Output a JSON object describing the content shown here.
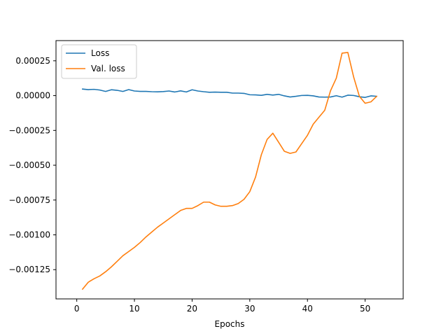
{
  "chart_data": {
    "type": "line",
    "title": "",
    "xlabel": "Epochs",
    "ylabel": "",
    "xlim": [
      -3.6,
      56.6
    ],
    "ylim": [
      -0.00146,
      0.000395
    ],
    "xticks": [
      0,
      10,
      20,
      30,
      40,
      50
    ],
    "xtick_labels": [
      "0",
      "10",
      "20",
      "30",
      "40",
      "50"
    ],
    "yticks": [
      -0.00125,
      -0.001,
      -0.00075,
      -0.0005,
      -0.00025,
      0.0,
      0.00025
    ],
    "ytick_labels": [
      "−0.00125",
      "−0.00100",
      "−0.00075",
      "−0.00050",
      "−0.00025",
      "0.00000",
      "0.00025"
    ],
    "grid": false,
    "legend_position": "upper-left",
    "x": [
      1,
      2,
      3,
      4,
      5,
      6,
      7,
      8,
      9,
      10,
      11,
      12,
      13,
      14,
      15,
      16,
      17,
      18,
      19,
      20,
      21,
      22,
      23,
      24,
      25,
      26,
      27,
      28,
      29,
      30,
      31,
      32,
      33,
      34,
      35,
      36,
      37,
      38,
      39,
      40,
      41,
      42,
      43,
      44,
      45,
      46,
      47,
      48,
      49,
      50,
      51,
      52
    ],
    "series": [
      {
        "name": "Loss",
        "color": "#1f77b4",
        "values": [
          4.7e-05,
          4.3e-05,
          4.5e-05,
          4e-05,
          3e-05,
          4.2e-05,
          3.8e-05,
          3e-05,
          4.3e-05,
          3.3e-05,
          3e-05,
          3e-05,
          2.8e-05,
          2.7e-05,
          2.9e-05,
          3.3e-05,
          2.6e-05,
          3.4e-05,
          2.6e-05,
          4.2e-05,
          3.3e-05,
          2.8e-05,
          2.4e-05,
          2.5e-05,
          2.4e-05,
          2.4e-05,
          1.8e-05,
          1.8e-05,
          1.6e-05,
          6e-06,
          5e-06,
          2e-06,
          9e-06,
          4e-06,
          9e-06,
          -2e-06,
          -1e-05,
          -5e-06,
          1e-06,
          2e-06,
          -2e-06,
          -1e-05,
          -1.1e-05,
          -1e-05,
          -1e-06,
          -1.1e-05,
          3e-06,
          1e-06,
          -8e-06,
          -1.3e-05,
          -2e-06,
          -5e-06
        ]
      },
      {
        "name": "Val. loss",
        "color": "#ff7f0e",
        "values": [
          -0.00139,
          -0.00134,
          -0.001315,
          -0.001295,
          -0.001265,
          -0.00123,
          -0.00119,
          -0.00115,
          -0.00112,
          -0.00109,
          -0.001055,
          -0.001015,
          -0.00098,
          -0.000945,
          -0.000915,
          -0.000885,
          -0.000855,
          -0.000825,
          -0.00081,
          -0.00081,
          -0.00079,
          -0.000765,
          -0.000765,
          -0.000785,
          -0.000795,
          -0.000795,
          -0.00079,
          -0.000775,
          -0.000745,
          -0.00069,
          -0.000585,
          -0.000425,
          -0.000315,
          -0.00027,
          -0.000335,
          -0.0004,
          -0.000415,
          -0.000405,
          -0.000345,
          -0.000285,
          -0.000205,
          -0.000155,
          -0.000105,
          3.5e-05,
          0.000125,
          0.000305,
          0.00031,
          0.000135,
          -5e-06,
          -5.5e-05,
          -4.5e-05,
          -5e-06
        ]
      }
    ]
  }
}
